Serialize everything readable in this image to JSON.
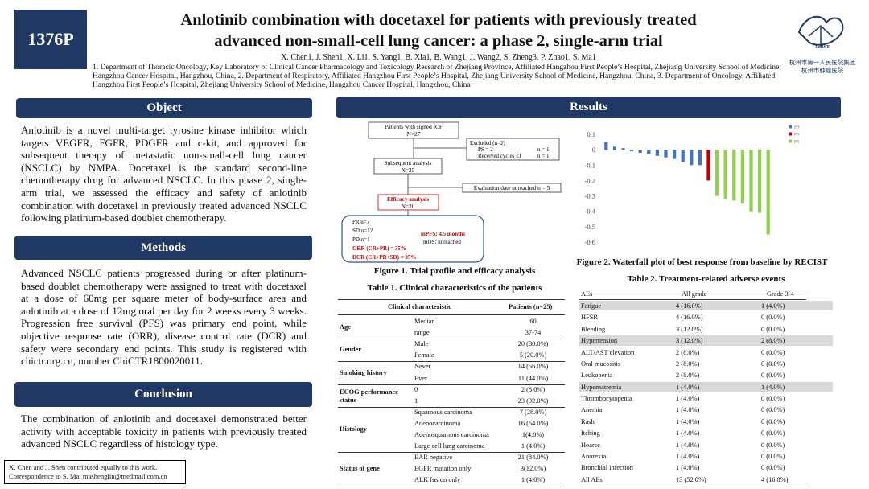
{
  "header": {
    "poster_id": "1376P",
    "title_lines": [
      "Anlotinib combination with docetaxel for patients with previously treated",
      "advanced non-small-cell lung cancer: a phase 2, single-arm trial"
    ],
    "authors": "X. Chen1, J. Shen1, X. Li1, S. Yang1, B. Xia1, B. Wang1, J. Wang2, S. Zheng3, P. Zhao1, S. Ma1",
    "affiliations": "1. Department of Thoracic Oncology, Key Laboratory of Clinical Cancer Pharmacology and Toxicology Research of Zhejiang Province, Affiliated Hangzhou First People’s Hospital, Zhejiang University School of Medicine, Hangzhou Cancer Hospital, Hangzhou, China, 2. Department of Respiratory, Affiliated Hangzhou First People’s Hospital, Zhejiang University School of Medicine, Hangzhou, China, 3. Department of Oncology, Affiliated Hangzhou First People’s Hospital, Zhejiang University School of Medicine, Hangzhou Cancer Hospital, Hangzhou, China",
    "logo": {
      "mark": "FIRST",
      "lines": [
        "杭州市第一人民医院集团",
        "杭州市肿瘤医院"
      ]
    }
  },
  "sections": {
    "object": {
      "heading": "Object",
      "body": "Anlotinib is a novel multi-target tyrosine kinase inhibitor which targets VEGFR, FGFR, PDGFR and c-kit, and approved for subsequent therapy of metastatic non-small-cell lung cancer (NSCLC) by NMPA. Docetaxel is the standard second-line chemotherapy drug for advanced NSCLC. In this phase 2, single-arm trial, we assessed the efficacy and safety of anlotinib combination with docetaxel in previously treated advanced NSCLC following platinum-based doublet chemotherapy."
    },
    "methods": {
      "heading": "Methods",
      "body": "Advanced NSCLC patients progressed during or after platinum-based doublet chemotherapy were assigned to treat with docetaxel at a dose of 60mg per square meter of body-surface area and anlotinib at a dose of 12mg oral per day for 2 weeks every 3 weeks. Progression free survival (PFS) was primary end point, while objective response rate (ORR), disease control rate (DCR) and safety were secondary end points. This study is registered with chictr.org.cn, number ChiCTR1800020011."
    },
    "conclusion": {
      "heading": "Conclusion",
      "body": "The combination of anlotinib and docetaxel demonstrated better activity with acceptable toxicity in patients with previously treated advanced NSCLC regardless of histology type."
    }
  },
  "footnote": [
    "X. Chen and J. Shen contributed equally to this work.",
    "Correspondence to S. Ma:  mashenglin@medmail.com.cn"
  ],
  "results": {
    "heading": "Results"
  },
  "flowchart": {
    "signed": [
      "Patients with signed ICF",
      "N=27"
    ],
    "excluded": [
      "Excluded (n=2)",
      "PS = 2",
      "n = 1",
      "Received cycles ≤1",
      "n = 1"
    ],
    "subsequent": [
      "Subsequent analysis",
      "N=25"
    ],
    "unreached": "Evaluation date unreached n = 5",
    "efficacy": [
      "Efficacy analysis",
      "N=20"
    ],
    "responses": [
      "PR  n=7",
      "SD  n=12",
      "PD  n=1"
    ],
    "rates": [
      "ORR (CR+PR) = 35%",
      "DCR (CR+PR+SD) = 95%"
    ],
    "survival": [
      "mPFS:  4.5 months",
      "mOS:  unreached"
    ]
  },
  "figure1": {
    "caption": "Figure 1. Trial profile and efficacy analysis"
  },
  "table1": {
    "title": "Table 1. Clinical characteristics of the patients",
    "columns": [
      "Clinical characteristic",
      "Patients  (n=25)"
    ],
    "groups": [
      {
        "label": "Age",
        "rows": [
          [
            "Median",
            "60"
          ],
          [
            "range",
            "37-74"
          ]
        ]
      },
      {
        "label": "Gender",
        "rows": [
          [
            "Male",
            "20 (80.0%)"
          ],
          [
            "Female",
            "5 (20.0%)"
          ]
        ]
      },
      {
        "label": "Smoking history",
        "rows": [
          [
            "Never",
            "14 (56.0%)"
          ],
          [
            "Ever",
            "11 (44.0%)"
          ]
        ]
      },
      {
        "label": "ECOG performance status",
        "rows": [
          [
            "0",
            "2 (8.0%)"
          ],
          [
            "1",
            "23 (92.0%)"
          ]
        ]
      },
      {
        "label": "Histology",
        "rows": [
          [
            "Squamous carcinoma",
            "7 (28.0%)"
          ],
          [
            "Adenocarcinoma",
            "16  (64.0%)"
          ],
          [
            "Adenosquamous carcinoma",
            "1(4.0%)"
          ],
          [
            "Large cell lung carcinoma",
            "1  (4.0%)"
          ]
        ]
      },
      {
        "label": "Status of gene",
        "rows": [
          [
            "EAR negative",
            "21 (84.0%)"
          ],
          [
            "EGFR mutation only",
            "3(12.0%)"
          ],
          [
            "ALK fusion only",
            "1 (4.0%)"
          ]
        ]
      }
    ]
  },
  "chart_data": {
    "type": "bar",
    "caption": "Figure 2. Waterfall plot of best response from baseline by RECIST",
    "values": [
      0.05,
      0.02,
      0.01,
      -0.01,
      -0.02,
      -0.03,
      -0.04,
      -0.05,
      -0.06,
      -0.08,
      -0.1,
      -0.1,
      -0.2,
      -0.3,
      -0.32,
      -0.33,
      -0.35,
      -0.4,
      -0.41,
      -0.55
    ],
    "colors": [
      "#4472c4",
      "#4472c4",
      "#4472c4",
      "#4472c4",
      "#4472c4",
      "#4472c4",
      "#4472c4",
      "#4472c4",
      "#4472c4",
      "#4472c4",
      "#4472c4",
      "#4472c4",
      "#c00000",
      "#92d050",
      "#92d050",
      "#92d050",
      "#92d050",
      "#92d050",
      "#92d050",
      "#92d050"
    ],
    "legend": [
      {
        "name": "SD",
        "color": "#4472c4"
      },
      {
        "name": "PD",
        "color": "#c00000"
      },
      {
        "name": "PR",
        "color": "#92d050"
      }
    ],
    "ylim": [
      -0.6,
      0.1
    ],
    "yticks": [
      0.1,
      0,
      -0.1,
      -0.2,
      -0.3,
      -0.4,
      -0.5,
      -0.6
    ],
    "grid": false
  },
  "table2": {
    "title": "Table 2. Treatment-related adverse events",
    "columns": [
      "AEs",
      "All grade",
      "Grade 3-4"
    ],
    "rows": [
      [
        "Fatigue",
        "4  (16.0%)",
        "1 (4.0%)"
      ],
      [
        "HFSR",
        "4  (16.0%)",
        "0 (0.0%)"
      ],
      [
        "Bleeding",
        "3  (12.0%)",
        "0 (0.0%)"
      ],
      [
        "Hypertension",
        "3  (12.0%)",
        "2 (8.0%)"
      ],
      [
        "ALT/AST elevation",
        "2  (8.0%)",
        "0 (0.0%)"
      ],
      [
        "Oral mucositis",
        "2  (8.0%)",
        "0 (0.0%)"
      ],
      [
        "Leukopenia",
        "2  (8.0%)",
        "0 (0.0%)"
      ],
      [
        "Hypernatremia",
        "1 (4.0%)",
        "1 (4.0%)"
      ],
      [
        "Thrombocytopenia",
        "1 (4.0%)",
        "0 (0.0%)"
      ],
      [
        "Anemia",
        "1 (4.0%)",
        "0 (0.0%)"
      ],
      [
        "Rash",
        "1 (4.0%)",
        "0 (0.0%)"
      ],
      [
        "Itching",
        "1 (4.0%)",
        "0 (0.0%)"
      ],
      [
        "Hoarse",
        "1 (4.0%)",
        "0 (0.0%)"
      ],
      [
        "Anorexia",
        "1 (4.0%)",
        "0 (0.0%)"
      ],
      [
        "Bronchial infection",
        "1 (4.0%)",
        "0 (0.0%)"
      ],
      [
        "All AEs",
        "13 (52.0%)",
        "4  (16.0%)"
      ]
    ],
    "highlighted_rows": [
      0,
      3,
      7
    ]
  }
}
